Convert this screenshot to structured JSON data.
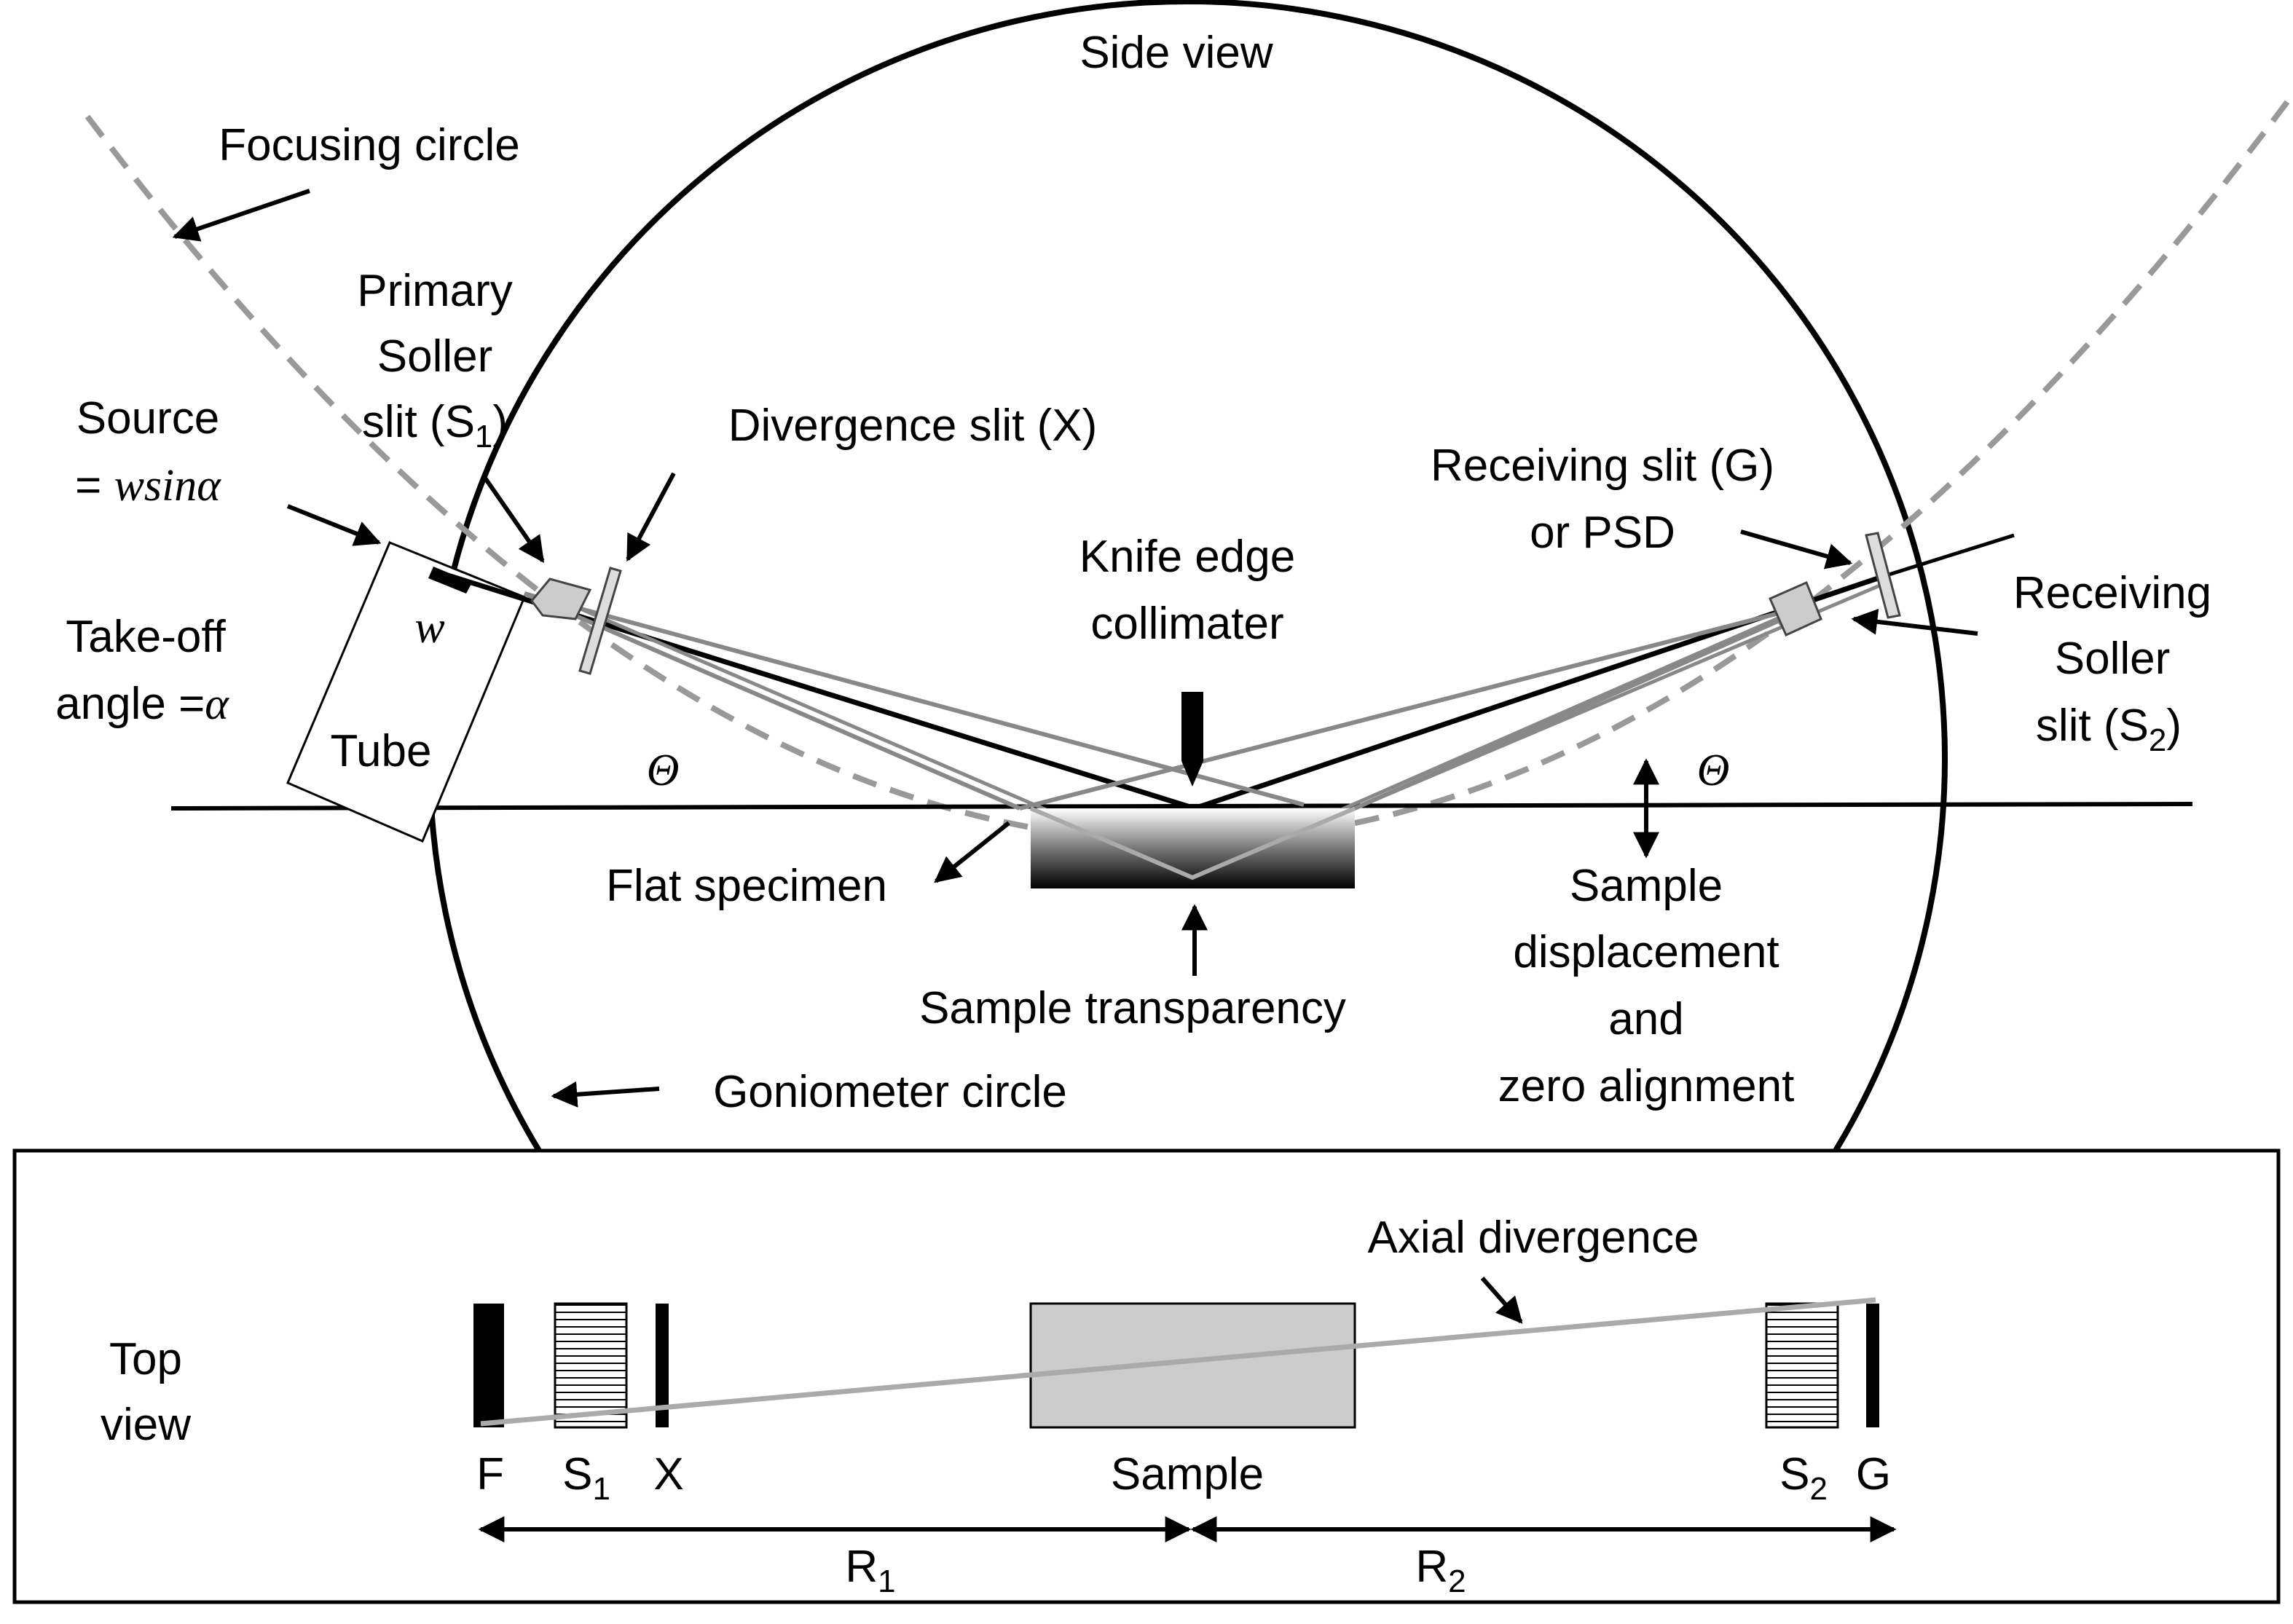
{
  "side_view": {
    "title": "Side view",
    "focusing_circle": "Focusing circle",
    "goniometer_circle": "Goniometer circle",
    "primary_soller": {
      "line1": "Primary",
      "line2": "Soller",
      "line3_prefix": "slit (S",
      "sub": "1",
      "line3_suffix": ")"
    },
    "source": {
      "line1": "Source",
      "line2_prefix": "= ",
      "line2_italic": "wsin",
      "line2_alpha": "α"
    },
    "w_label": "w",
    "takeoff": {
      "line1": "Take-off",
      "line2_prefix": "angle =",
      "alpha": "α"
    },
    "tube": "Tube",
    "divergence_slit": "Divergence slit (X)",
    "knife_edge": {
      "line1": "Knife edge",
      "line2": "collimater"
    },
    "receiving_slit": {
      "line1": "Receiving slit (G)",
      "line2": "or PSD"
    },
    "receiving_soller": {
      "line1": "Receiving",
      "line2": "Soller",
      "line3_prefix": "slit (S",
      "sub": "2",
      "line3_suffix": ")"
    },
    "theta_left": "Θ",
    "theta_right": "Θ",
    "flat_specimen": "Flat specimen",
    "sample_transparency": "Sample transparency",
    "sample_displacement": {
      "line1": "Sample",
      "line2": "displacement",
      "line3": "and",
      "line4": "zero alignment"
    }
  },
  "top_view": {
    "title": {
      "line1": "Top",
      "line2": "view"
    },
    "axial_divergence": "Axial divergence",
    "labels": {
      "f": "F",
      "s1_prefix": "S",
      "s1_sub": "1",
      "x": "X",
      "sample": "Sample",
      "s2_prefix": "S",
      "s2_sub": "2",
      "g": "G"
    },
    "r1_prefix": "R",
    "r1_sub": "1",
    "r2_prefix": "R",
    "r2_sub": "2"
  }
}
